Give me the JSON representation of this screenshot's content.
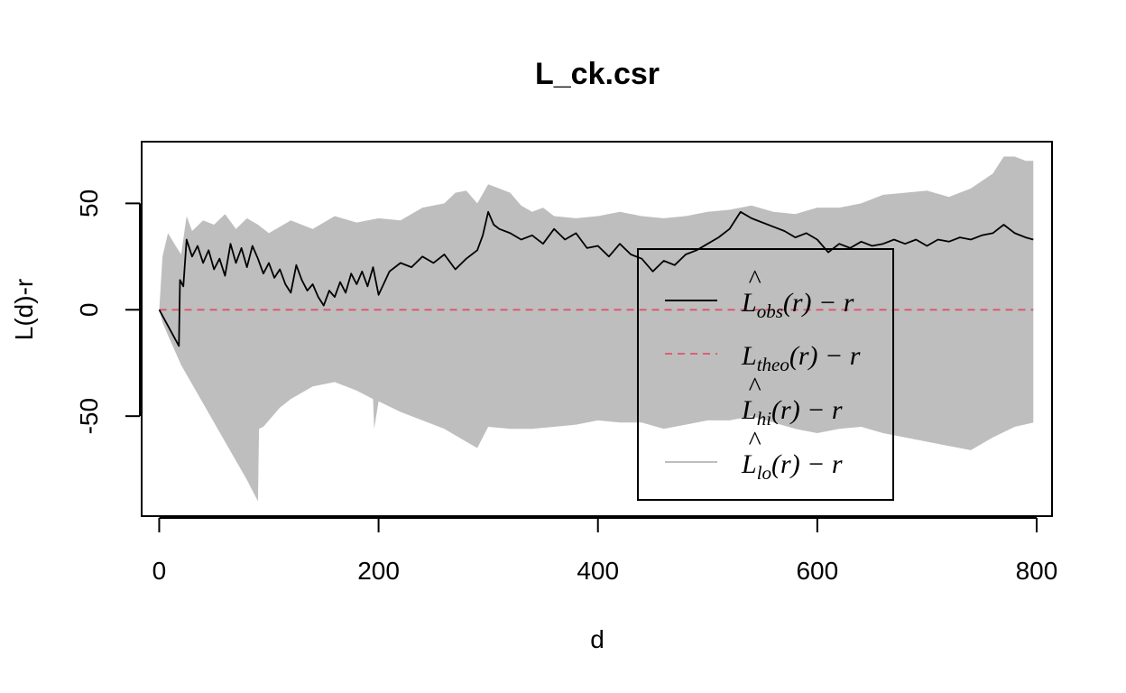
{
  "chart_data": {
    "type": "line",
    "title": "L_ck.csr",
    "xlabel": "d",
    "ylabel": "L(d)-r",
    "xlim": [
      -16,
      814
    ],
    "ylim": [
      -97,
      79
    ],
    "xticks": [
      0,
      200,
      400,
      600,
      800
    ],
    "yticks": [
      -50,
      0,
      50
    ],
    "grid": false,
    "legend": {
      "placement": "bottom-right",
      "entries": [
        {
          "base": "L",
          "hat": true,
          "sub": "obs",
          "tail": "(r) − r",
          "style": "solid",
          "color": "#000000"
        },
        {
          "base": "L",
          "hat": false,
          "sub": "theo",
          "tail": "(r) − r",
          "style": "dashed",
          "color": "#DF536B"
        },
        {
          "base": "L",
          "hat": true,
          "sub": "hi",
          "tail": "(r) − r",
          "style": "band",
          "color": "#BEBEBE"
        },
        {
          "base": "L",
          "hat": true,
          "sub": "lo",
          "tail": "(r) − r",
          "style": "band",
          "color": "#BEBEBE"
        }
      ]
    },
    "series": [
      {
        "name": "obs",
        "color": "#000000",
        "style": "solid",
        "x": [
          0,
          18,
          19,
          22,
          25,
          30,
          35,
          40,
          45,
          50,
          55,
          60,
          65,
          70,
          75,
          80,
          85,
          90,
          95,
          100,
          105,
          110,
          115,
          120,
          125,
          130,
          135,
          140,
          145,
          150,
          155,
          160,
          165,
          170,
          175,
          180,
          185,
          190,
          195,
          200,
          210,
          220,
          230,
          240,
          250,
          260,
          270,
          280,
          290,
          295,
          300,
          305,
          310,
          320,
          330,
          340,
          350,
          360,
          370,
          380,
          390,
          400,
          410,
          420,
          430,
          440,
          450,
          460,
          470,
          480,
          490,
          500,
          510,
          520,
          530,
          540,
          550,
          560,
          570,
          580,
          590,
          600,
          610,
          620,
          630,
          640,
          650,
          660,
          670,
          680,
          690,
          700,
          710,
          720,
          730,
          740,
          750,
          760,
          770,
          780,
          790,
          797
        ],
        "y": [
          0,
          -17,
          14,
          11,
          33,
          25,
          30,
          22,
          28,
          19,
          24,
          16,
          31,
          22,
          29,
          20,
          30,
          24,
          17,
          22,
          15,
          19,
          12,
          8,
          21,
          14,
          9,
          12,
          6,
          2,
          9,
          6,
          13,
          8,
          17,
          12,
          18,
          11,
          20,
          7,
          18,
          22,
          20,
          25,
          22,
          26,
          19,
          24,
          28,
          35,
          46,
          40,
          38,
          36,
          33,
          35,
          31,
          38,
          33,
          36,
          29,
          30,
          25,
          31,
          26,
          24,
          18,
          23,
          21,
          26,
          28,
          31,
          34,
          38,
          46,
          43,
          41,
          39,
          37,
          34,
          36,
          33,
          27,
          31,
          29,
          32,
          30,
          31,
          33,
          31,
          33,
          30,
          33,
          32,
          34,
          33,
          35,
          36,
          40,
          36,
          34,
          33
        ]
      },
      {
        "name": "theo",
        "color": "#DF536B",
        "style": "dashed",
        "x": [
          0,
          797
        ],
        "y": [
          0,
          0
        ]
      },
      {
        "name": "hi",
        "color": "#BEBEBE",
        "style": "band-upper",
        "x": [
          0,
          3,
          8,
          15,
          20,
          25,
          30,
          40,
          50,
          60,
          70,
          80,
          90,
          100,
          120,
          140,
          160,
          180,
          200,
          220,
          240,
          260,
          270,
          280,
          290,
          300,
          310,
          320,
          330,
          340,
          350,
          360,
          380,
          400,
          420,
          440,
          460,
          480,
          500,
          520,
          540,
          560,
          580,
          600,
          620,
          640,
          660,
          680,
          700,
          720,
          740,
          760,
          770,
          780,
          790,
          797
        ],
        "y": [
          0,
          25,
          36,
          30,
          26,
          44,
          37,
          42,
          40,
          45,
          38,
          43,
          40,
          36,
          42,
          38,
          44,
          41,
          43,
          42,
          48,
          50,
          55,
          56,
          50,
          59,
          57,
          55,
          49,
          46,
          48,
          44,
          43,
          44,
          46,
          44,
          43,
          44,
          46,
          47,
          49,
          46,
          45,
          48,
          48,
          50,
          54,
          55,
          56,
          53,
          57,
          64,
          72,
          72,
          70,
          70
        ]
      },
      {
        "name": "lo",
        "color": "#BEBEBE",
        "style": "band-lower",
        "x": [
          0,
          3,
          8,
          20,
          40,
          60,
          80,
          90,
          91,
          95,
          100,
          110,
          120,
          140,
          160,
          180,
          195,
          196,
          200,
          220,
          240,
          260,
          280,
          290,
          300,
          320,
          340,
          360,
          380,
          400,
          420,
          440,
          460,
          480,
          500,
          520,
          540,
          560,
          580,
          600,
          620,
          640,
          660,
          680,
          700,
          720,
          740,
          760,
          780,
          797
        ],
        "y": [
          0,
          -6,
          -12,
          -26,
          -44,
          -62,
          -80,
          -90,
          -56,
          -55,
          -52,
          -46,
          -42,
          -36,
          -34,
          -38,
          -42,
          -56,
          -43,
          -48,
          -52,
          -56,
          -62,
          -65,
          -55,
          -56,
          -56,
          -55,
          -54,
          -52,
          -53,
          -53,
          -56,
          -54,
          -52,
          -52,
          -50,
          -53,
          -56,
          -58,
          -56,
          -55,
          -58,
          -60,
          -62,
          -64,
          -66,
          -60,
          -55,
          -53
        ]
      }
    ]
  }
}
